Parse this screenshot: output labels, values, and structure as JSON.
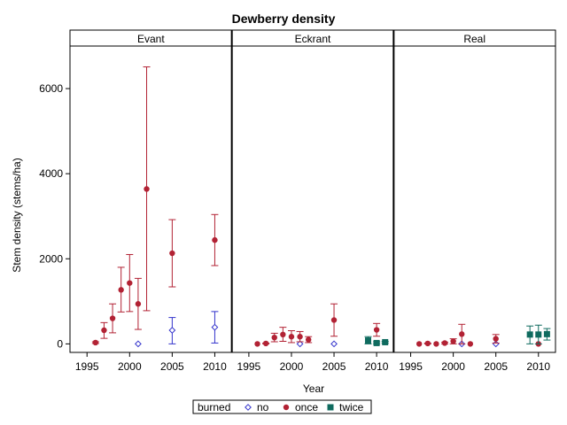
{
  "chart_data": {
    "type": "scatter",
    "title": "Dewberry density",
    "xlabel": "Year",
    "ylabel": "Stem density (stems/ha)",
    "xlim": [
      1993,
      2012
    ],
    "ylim": [
      -200,
      7000
    ],
    "xticks": [
      1995,
      2000,
      2005,
      2010
    ],
    "yticks": [
      0,
      2000,
      4000,
      6000
    ],
    "grid": false,
    "legend": {
      "position": "bottom",
      "title": "burned",
      "entries": [
        {
          "name": "no",
          "color": "#3333cc",
          "marker": "diamond-open"
        },
        {
          "name": "once",
          "color": "#b22234",
          "marker": "circle"
        },
        {
          "name": "twice",
          "color": "#0f6b5f",
          "marker": "square"
        }
      ]
    },
    "panels": [
      {
        "name": "Evant",
        "series": [
          {
            "name": "no",
            "points": [
              {
                "x": 2001,
                "y": 0,
                "low": 0,
                "high": 0
              },
              {
                "x": 2005,
                "y": 320,
                "low": 0,
                "high": 620
              },
              {
                "x": 2010,
                "y": 390,
                "low": 20,
                "high": 760
              }
            ]
          },
          {
            "name": "once",
            "points": [
              {
                "x": 1996,
                "y": 30,
                "low": 10,
                "high": 50
              },
              {
                "x": 1997,
                "y": 320,
                "low": 130,
                "high": 500
              },
              {
                "x": 1998,
                "y": 600,
                "low": 260,
                "high": 940
              },
              {
                "x": 1999,
                "y": 1270,
                "low": 750,
                "high": 1800
              },
              {
                "x": 2000,
                "y": 1430,
                "low": 760,
                "high": 2100
              },
              {
                "x": 2001,
                "y": 940,
                "low": 340,
                "high": 1540
              },
              {
                "x": 2002,
                "y": 3640,
                "low": 780,
                "high": 6510
              },
              {
                "x": 2005,
                "y": 2130,
                "low": 1340,
                "high": 2920
              },
              {
                "x": 2010,
                "y": 2440,
                "low": 1840,
                "high": 3040
              }
            ]
          }
        ]
      },
      {
        "name": "Eckrant",
        "series": [
          {
            "name": "no",
            "points": [
              {
                "x": 2001,
                "y": 0,
                "low": 0,
                "high": 0
              },
              {
                "x": 2005,
                "y": 0,
                "low": 0,
                "high": 0
              }
            ]
          },
          {
            "name": "once",
            "points": [
              {
                "x": 1996,
                "y": 0,
                "low": 0,
                "high": 0
              },
              {
                "x": 1997,
                "y": 10,
                "low": 0,
                "high": 20
              },
              {
                "x": 1998,
                "y": 150,
                "low": 50,
                "high": 250
              },
              {
                "x": 1999,
                "y": 220,
                "low": 60,
                "high": 390
              },
              {
                "x": 2000,
                "y": 170,
                "low": 30,
                "high": 310
              },
              {
                "x": 2001,
                "y": 170,
                "low": 50,
                "high": 290
              },
              {
                "x": 2002,
                "y": 100,
                "low": 30,
                "high": 170
              },
              {
                "x": 2005,
                "y": 560,
                "low": 180,
                "high": 940
              },
              {
                "x": 2010,
                "y": 330,
                "low": 180,
                "high": 480
              }
            ]
          },
          {
            "name": "twice",
            "points": [
              {
                "x": 2009,
                "y": 80,
                "low": 0,
                "high": 170
              },
              {
                "x": 2010,
                "y": 20,
                "low": 0,
                "high": 50
              },
              {
                "x": 2011,
                "y": 40,
                "low": 20,
                "high": 60
              }
            ]
          }
        ]
      },
      {
        "name": "Real",
        "series": [
          {
            "name": "no",
            "points": [
              {
                "x": 2001,
                "y": 0,
                "low": 0,
                "high": 0
              },
              {
                "x": 2005,
                "y": 0,
                "low": 0,
                "high": 0
              }
            ]
          },
          {
            "name": "once",
            "points": [
              {
                "x": 1996,
                "y": 0,
                "low": 0,
                "high": 0
              },
              {
                "x": 1997,
                "y": 10,
                "low": 0,
                "high": 20
              },
              {
                "x": 1998,
                "y": 0,
                "low": 0,
                "high": 0
              },
              {
                "x": 1999,
                "y": 20,
                "low": 0,
                "high": 40
              },
              {
                "x": 2000,
                "y": 60,
                "low": 0,
                "high": 120
              },
              {
                "x": 2001,
                "y": 230,
                "low": 0,
                "high": 460
              },
              {
                "x": 2002,
                "y": 0,
                "low": 0,
                "high": 0
              },
              {
                "x": 2005,
                "y": 120,
                "low": 20,
                "high": 220
              },
              {
                "x": 2010,
                "y": 0,
                "low": 0,
                "high": 0
              }
            ]
          },
          {
            "name": "twice",
            "points": [
              {
                "x": 2009,
                "y": 220,
                "low": 0,
                "high": 420
              },
              {
                "x": 2010,
                "y": 220,
                "low": 0,
                "high": 440
              },
              {
                "x": 2011,
                "y": 230,
                "low": 90,
                "high": 360
              }
            ]
          }
        ]
      }
    ]
  }
}
